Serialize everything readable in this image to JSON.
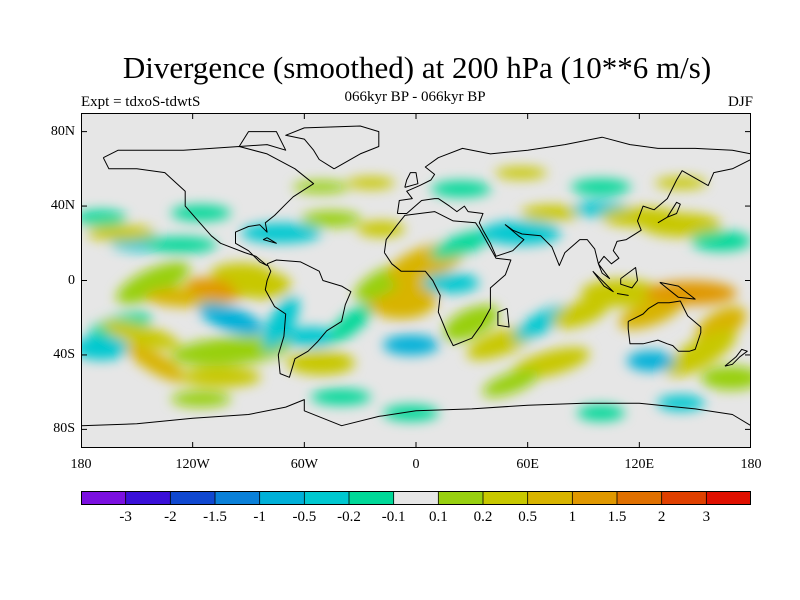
{
  "title": "Divergence (smoothed) at 200 hPa (10**6 m/s)",
  "left_label": "Expt = tdxoS-tdwtS",
  "center_label": "066kyr BP - 066kyr BP",
  "right_label": "DJF",
  "map": {
    "projection": "cylindrical-equidistant",
    "lat_ticks": [
      {
        "value": 80,
        "label": "80N"
      },
      {
        "value": 40,
        "label": "40N"
      },
      {
        "value": 0,
        "label": "0"
      },
      {
        "value": -40,
        "label": "40S"
      },
      {
        "value": -80,
        "label": "80S"
      }
    ],
    "lon_ticks": [
      {
        "value": -180,
        "label": "180"
      },
      {
        "value": -120,
        "label": "120W"
      },
      {
        "value": -60,
        "label": "60W"
      },
      {
        "value": 0,
        "label": "0"
      },
      {
        "value": 60,
        "label": "60E"
      },
      {
        "value": 120,
        "label": "120E"
      },
      {
        "value": 180,
        "label": "180"
      }
    ],
    "background_color": "#e6e6e6",
    "coastline_color": "#000000"
  },
  "colorbar": {
    "colors": [
      "#7b10e0",
      "#3a10d8",
      "#1048d0",
      "#0a80d8",
      "#00b0d8",
      "#00c8d0",
      "#00d898",
      "#e6e6e6",
      "#98d010",
      "#c8c800",
      "#d8b400",
      "#e09800",
      "#e07000",
      "#e04000",
      "#e01000"
    ],
    "labels": [
      "-3",
      "-2",
      "-1.5",
      "-1",
      "-0.5",
      "-0.2",
      "-0.1",
      "0.1",
      "0.2",
      "0.5",
      "1",
      "1.5",
      "2",
      "3"
    ]
  }
}
